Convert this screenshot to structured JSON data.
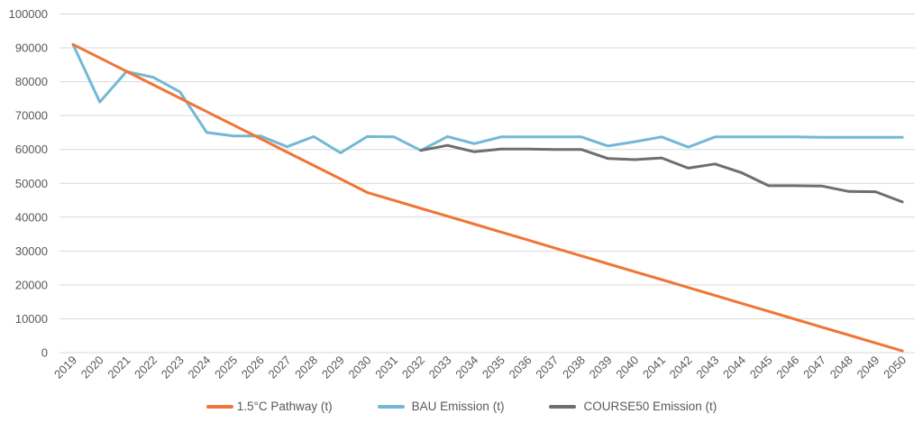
{
  "chart_data": {
    "type": "line",
    "title": "",
    "xlabel": "",
    "ylabel": "",
    "ylim": [
      0,
      100000
    ],
    "yticks": [
      "0",
      "10000",
      "20000",
      "30000",
      "40000",
      "50000",
      "60000",
      "70000",
      "80000",
      "90000",
      "100000"
    ],
    "grid": true,
    "legend_position": "bottom",
    "x": [
      "2019",
      "2020",
      "2021",
      "2022",
      "2023",
      "2024",
      "2025",
      "2026",
      "2027",
      "2028",
      "2029",
      "2030",
      "2031",
      "2032",
      "2033",
      "2034",
      "2035",
      "2036",
      "2037",
      "2038",
      "2039",
      "2040",
      "2041",
      "2042",
      "2043",
      "2044",
      "2045",
      "2046",
      "2047",
      "2048",
      "2049",
      "2050"
    ],
    "series": [
      {
        "name": "1.5°C Pathway (t)",
        "color": "#F07536",
        "values": [
          91000,
          87030,
          83060,
          79090,
          75120,
          71150,
          67180,
          63210,
          59240,
          55270,
          51300,
          47300,
          44960,
          42620,
          40280,
          37940,
          35600,
          33260,
          30920,
          28580,
          26240,
          23900,
          21560,
          19220,
          16880,
          14540,
          12200,
          9860,
          7520,
          5180,
          2840,
          500
        ]
      },
      {
        "name": "BAU Emission (t)",
        "color": "#72B8D6",
        "values": [
          91000,
          74000,
          83000,
          81300,
          77000,
          65000,
          64000,
          64000,
          60800,
          63800,
          59000,
          63800,
          63700,
          59700,
          63800,
          61700,
          63700,
          63700,
          63700,
          63700,
          61000,
          62300,
          63700,
          60700,
          63700,
          63700,
          63700,
          63700,
          63600,
          63600,
          63600,
          63600
        ]
      },
      {
        "name": "COURSE50 Emission (t)",
        "color": "#6E6E6E",
        "values": [
          null,
          null,
          null,
          null,
          null,
          null,
          null,
          null,
          null,
          null,
          null,
          null,
          null,
          59700,
          61200,
          59300,
          60100,
          60100,
          60000,
          60000,
          57300,
          57000,
          57500,
          54500,
          55700,
          53100,
          49300,
          49300,
          49200,
          47600,
          47500,
          44500
        ]
      }
    ]
  }
}
